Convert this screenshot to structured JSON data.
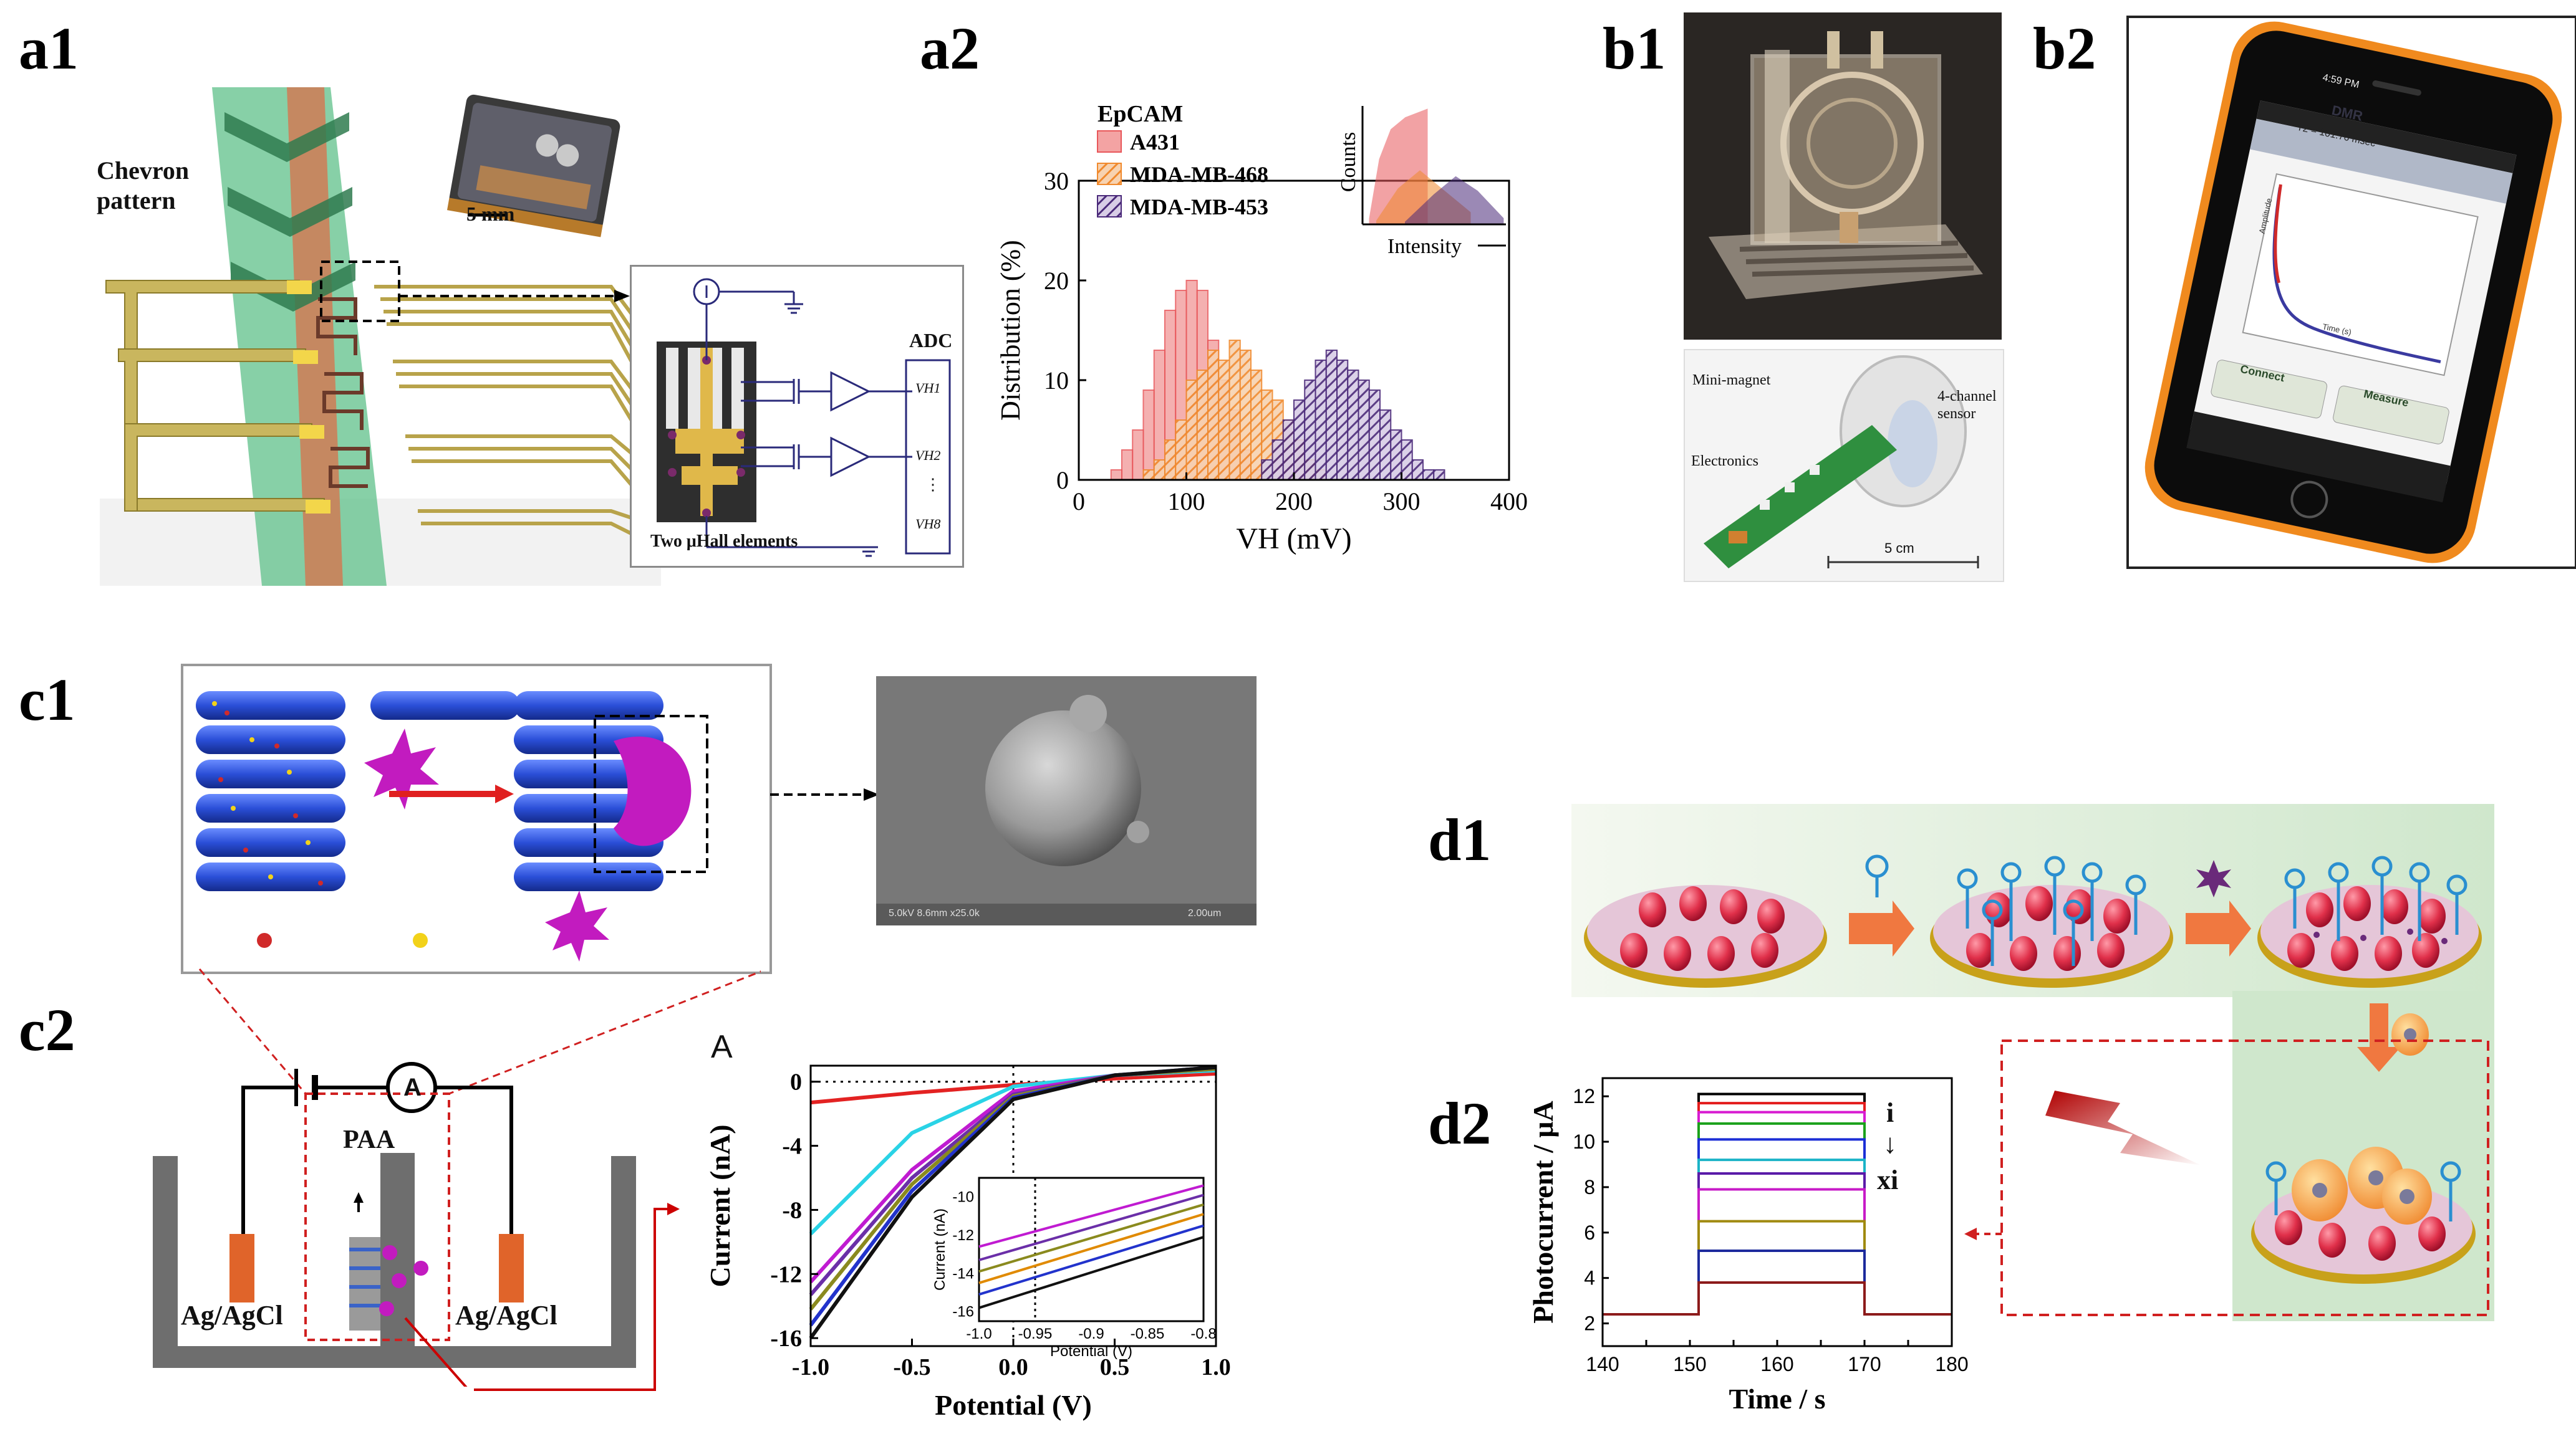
{
  "panels": {
    "a1": {
      "label": "a1",
      "chevron_label_1": "Chevron",
      "chevron_label_2": "pattern",
      "scale_bar": "5 mm",
      "adc_label": "ADC",
      "vh1": "VH1",
      "vh2": "VH2",
      "vh_dots": "⋮",
      "vh8": "VH8",
      "hall_caption": "Two μHall elements"
    },
    "a2": {
      "label": "a2",
      "legend_title": "EpCAM",
      "inset_ylabel": "Counts",
      "inset_xlabel": "Intensity"
    },
    "b1": {
      "label": "b1",
      "mini_magnet": "Mini-magnet",
      "sensor_1": "4-channel",
      "sensor_2": "sensor",
      "electronics": "Electronics",
      "scale": "5 cm"
    },
    "b2": {
      "label": "b2",
      "app_title": "DMR",
      "status_time": "4:59 PM",
      "t2_label": "T2 =",
      "t2_value": "101.76 msec",
      "connect_button": "Connect",
      "measure_button": "Measure",
      "plot_xlabel": "Time (s)",
      "plot_ylabel": "Amplitude"
    },
    "c1": {
      "label": "c1",
      "sem_caption": "5.0kV 8.6mm x25.0k",
      "sem_scale": "2.00um"
    },
    "c2": {
      "label": "c2",
      "paa": "PAA",
      "ammeter": "A",
      "electrode_left": "Ag/AgCl",
      "electrode_right": "Ag/AgCl",
      "chart_panel_letter": "A"
    },
    "d1": {
      "label": "d1"
    },
    "d2": {
      "label": "d2",
      "series_start": "i",
      "arrow": "↓",
      "series_end": "xi"
    }
  },
  "chart_data": [
    {
      "id": "a2-histogram",
      "type": "bar",
      "title": "",
      "xlabel": "VH (mV)",
      "ylabel": "Distribution (%)",
      "xlim": [
        0,
        400
      ],
      "ylim": [
        0,
        30
      ],
      "xticks": [
        0,
        100,
        200,
        300,
        400
      ],
      "yticks": [
        0,
        10,
        20,
        30
      ],
      "bin_width": 10,
      "legend_title": "EpCAM",
      "series": [
        {
          "name": "A431",
          "color": "#e8575a",
          "x": [
            30,
            40,
            50,
            60,
            70,
            80,
            90,
            100,
            110,
            120,
            130,
            140,
            150,
            160
          ],
          "values": [
            1,
            3,
            5,
            9,
            13,
            17,
            19,
            20,
            19,
            14,
            10,
            7,
            3,
            1
          ]
        },
        {
          "name": "MDA-MB-468",
          "color": "#f08a2e",
          "x": [
            60,
            70,
            80,
            90,
            100,
            110,
            120,
            130,
            140,
            150,
            160,
            170,
            180,
            190,
            200,
            210,
            220
          ],
          "values": [
            1,
            2,
            4,
            6,
            10,
            11,
            13,
            12,
            14,
            13,
            11,
            9,
            8,
            6,
            4,
            2,
            1
          ]
        },
        {
          "name": "MDA-MB-453",
          "color": "#4b2a7a",
          "x": [
            170,
            180,
            190,
            200,
            210,
            220,
            230,
            240,
            250,
            260,
            270,
            280,
            290,
            300,
            310,
            320,
            330
          ],
          "values": [
            2,
            4,
            6,
            8,
            10,
            12,
            13,
            12,
            11,
            10,
            9,
            7,
            5,
            4,
            2,
            1,
            1
          ]
        }
      ]
    },
    {
      "id": "c2-iv-curves",
      "type": "line",
      "xlabel": "Potential (V)",
      "ylabel": "Current (nA)",
      "xlim": [
        -1.0,
        1.0
      ],
      "ylim": [
        -16.5,
        1
      ],
      "xticks": [
        -1.0,
        -0.5,
        0.0,
        0.5,
        1.0
      ],
      "yticks": [
        0,
        -4,
        -8,
        -12,
        -16
      ],
      "series": [
        {
          "name": "red",
          "color": "#e32222",
          "x": [
            -1,
            -0.5,
            0,
            0.5,
            1
          ],
          "values": [
            -1.3,
            -0.7,
            -0.2,
            0.2,
            0.5
          ]
        },
        {
          "name": "cyan",
          "color": "#2ad3e6",
          "x": [
            -1,
            -0.5,
            0,
            0.5,
            1
          ],
          "values": [
            -9.5,
            -3.2,
            -0.3,
            0.4,
            0.7
          ]
        },
        {
          "name": "magenta",
          "color": "#c01bd1",
          "x": [
            -1,
            -0.5,
            0,
            0.5,
            1
          ],
          "values": [
            -12.5,
            -5.5,
            -0.6,
            0.4,
            0.8
          ]
        },
        {
          "name": "purple",
          "color": "#6b2fa8",
          "x": [
            -1,
            -0.5,
            0,
            0.5,
            1
          ],
          "values": [
            -13.3,
            -6.0,
            -0.8,
            0.4,
            0.8
          ]
        },
        {
          "name": "olive",
          "color": "#8a8a1e",
          "x": [
            -1,
            -0.5,
            0,
            0.5,
            1
          ],
          "values": [
            -14.2,
            -6.4,
            -0.9,
            0.4,
            0.8
          ]
        },
        {
          "name": "blue",
          "color": "#2233cc",
          "x": [
            -1,
            -0.5,
            0,
            0.5,
            1
          ],
          "values": [
            -15.2,
            -6.8,
            -1.0,
            0.4,
            0.9
          ]
        },
        {
          "name": "black",
          "color": "#111111",
          "x": [
            -1,
            -0.5,
            0,
            0.5,
            1
          ],
          "values": [
            -16.0,
            -7.2,
            -1.1,
            0.4,
            0.9
          ]
        }
      ]
    },
    {
      "id": "c2-iv-inset",
      "type": "line",
      "xlabel": "Potential (V)",
      "ylabel": "Current (nA)",
      "xlim": [
        -1.0,
        -0.8
      ],
      "ylim": [
        -16.5,
        -9
      ],
      "xticks": [
        -1.0,
        -0.95,
        -0.9,
        -0.85,
        -0.8
      ],
      "yticks": [
        -10,
        -12,
        -14,
        -16
      ],
      "series_offsets_at_xmin": [
        -12.6,
        -13.3,
        -13.9,
        -14.5,
        -15.1,
        -15.8
      ],
      "series_offsets_at_xmax": [
        -9.4,
        -9.9,
        -10.4,
        -10.9,
        -11.5,
        -12.1
      ],
      "colors": [
        "#c01bd1",
        "#6b2fa8",
        "#8a8a1e",
        "#e08a00",
        "#2233cc",
        "#111111"
      ]
    },
    {
      "id": "d2-photocurrent",
      "type": "line",
      "xlabel": "Time / s",
      "ylabel": "Photocurrent / μA",
      "xlim": [
        140,
        180
      ],
      "ylim": [
        1,
        12.8
      ],
      "xticks": [
        140,
        145,
        150,
        155,
        160,
        165,
        170,
        175,
        180
      ],
      "xtick_labels": [
        "140",
        "",
        "150",
        "",
        "160",
        "",
        "170",
        "",
        "180"
      ],
      "yticks": [
        2,
        4,
        6,
        8,
        10,
        12
      ],
      "baseline": 2.4,
      "on_time": 151,
      "off_time": 170,
      "plateau_values": [
        12.1,
        11.7,
        11.3,
        10.8,
        10.1,
        9.2,
        8.6,
        7.9,
        6.5,
        5.2,
        3.8
      ],
      "colors": [
        "#000000",
        "#e31c1c",
        "#d81bd1",
        "#1ba11b",
        "#1c2fd6",
        "#1bb3c7",
        "#5a1ba8",
        "#c71bc7",
        "#a08a10",
        "#1c2a9c",
        "#8c1b1b"
      ]
    }
  ]
}
